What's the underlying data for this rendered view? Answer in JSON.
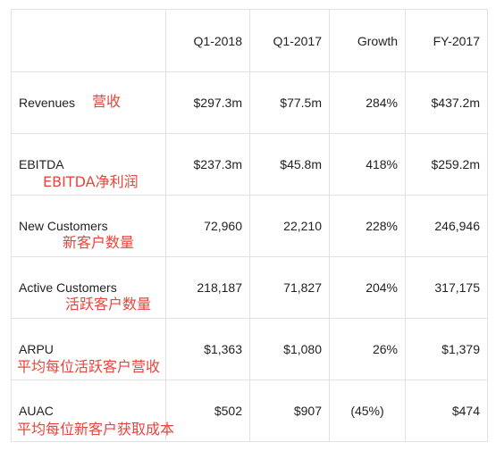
{
  "table": {
    "headers": [
      "",
      "Q1-2018",
      "Q1-2017",
      "Growth",
      "FY-2017"
    ],
    "rows": [
      {
        "label": "Revenues",
        "annotation": "营收",
        "values": [
          "$297.3m",
          "$77.5m",
          "284%",
          "$437.2m"
        ]
      },
      {
        "label": "EBITDA",
        "annotation": "EBITDA净利润",
        "values": [
          "$237.3m",
          "$45.8m",
          "418%",
          "$259.2m"
        ]
      },
      {
        "label": "New Customers",
        "annotation": "新客户数量",
        "values": [
          "72,960",
          "22,210",
          "228%",
          "246,946"
        ]
      },
      {
        "label": "Active Customers",
        "annotation": "活跃客户数量",
        "values": [
          "218,187",
          "71,827",
          "204%",
          "317,175"
        ]
      },
      {
        "label": "ARPU",
        "annotation": "平均每位活跃客户营收",
        "values": [
          "$1,363",
          "$1,080",
          "26%",
          "$1,379"
        ]
      },
      {
        "label": "AUAC",
        "annotation": "平均每位新客户获取成本",
        "values": [
          "$502",
          "$907",
          "(45%)",
          "$474"
        ]
      }
    ]
  },
  "colors": {
    "annotation": "#e8453c",
    "border": "#e2e2e2",
    "text": "#222222"
  }
}
